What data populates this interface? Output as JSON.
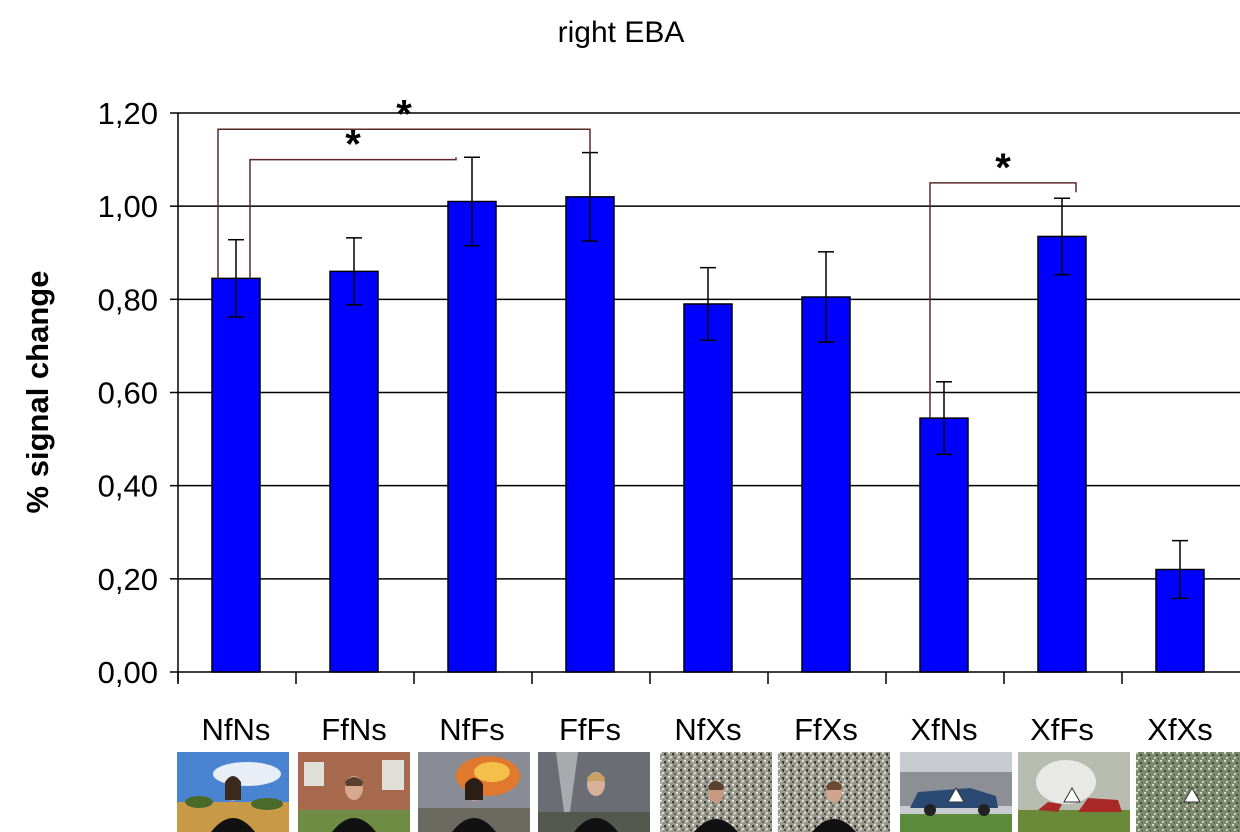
{
  "chart_data": {
    "type": "bar",
    "title": "right EBA",
    "xlabel": "",
    "ylabel": "% signal change",
    "ylim": [
      0,
      1.2
    ],
    "yticks": [
      "0,00",
      "0,20",
      "0,40",
      "0,60",
      "0,80",
      "1,00",
      "1,20"
    ],
    "categories": [
      "NfNs",
      "FfNs",
      "NfFs",
      "FfFs",
      "NfXs",
      "FfXs",
      "XfNs",
      "XfFs",
      "XfXs"
    ],
    "values": [
      0.845,
      0.86,
      1.01,
      1.02,
      0.79,
      0.805,
      0.545,
      0.935,
      0.22
    ],
    "errors": [
      0.083,
      0.072,
      0.095,
      0.095,
      0.078,
      0.097,
      0.078,
      0.082,
      0.062
    ],
    "bar_color": "#0000ff",
    "grid": true,
    "significance": [
      {
        "from": "NfNs",
        "to": "FfFs",
        "label": "*"
      },
      {
        "from": "NfNs",
        "to": "NfFs",
        "label": "*"
      },
      {
        "from": "XfNs",
        "to": "XfFs",
        "label": "*"
      }
    ],
    "thumbnails": [
      {
        "category": "NfNs",
        "icon": "face-neutral-landscape-image"
      },
      {
        "category": "FfNs",
        "icon": "face-fearful-house-image"
      },
      {
        "category": "NfFs",
        "icon": "face-neutral-fire-scene-image"
      },
      {
        "category": "FfFs",
        "icon": "face-fearful-tornado-image"
      },
      {
        "category": "NfXs",
        "icon": "face-neutral-noise-image"
      },
      {
        "category": "FfXs",
        "icon": "face-fearful-noise-image"
      },
      {
        "category": "XfNs",
        "icon": "car-scene-image"
      },
      {
        "category": "XfFs",
        "icon": "car-explosion-image"
      },
      {
        "category": "XfXs",
        "icon": "noise-image"
      }
    ]
  }
}
